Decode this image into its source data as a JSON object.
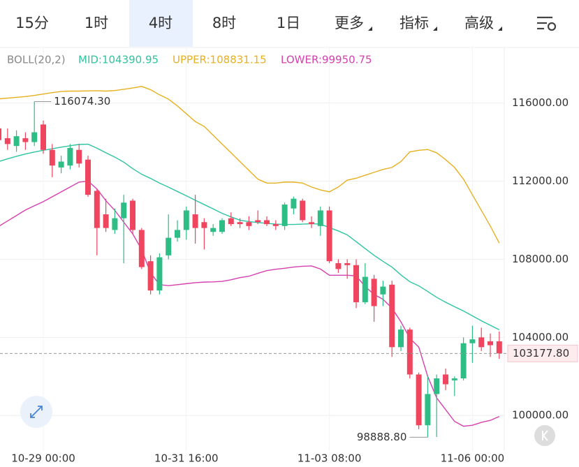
{
  "tabs": [
    "15分",
    "1时",
    "4时",
    "8时",
    "1日",
    "更多",
    "指标",
    "高级"
  ],
  "selected_tab": 2,
  "chart_data": {
    "type": "candlestick",
    "indicator": "BOLL(20,2)",
    "bands": [
      {
        "name": "MID",
        "label": "MID:104390.95",
        "color": "#2ec4a0",
        "values": [
          113000,
          113140,
          113270,
          113390,
          113490,
          113580,
          113660,
          113740,
          113810,
          113880,
          113890,
          113690,
          113450,
          113230,
          112970,
          112640,
          112350,
          112140,
          111900,
          111690,
          111470,
          111250,
          111020,
          110800,
          110580,
          110350,
          110170,
          110000,
          109930,
          109880,
          109840,
          109800,
          109780,
          109780,
          109800,
          109820,
          109800,
          109620,
          109450,
          109250,
          108900,
          108550,
          108200,
          107890,
          107600,
          107200,
          106850,
          106640,
          106350,
          106050,
          105800,
          105570,
          105350,
          105100,
          104850,
          104620,
          104390.95
        ]
      },
      {
        "name": "UPPER",
        "label": "UPPER:108831.15",
        "color": "#e8b020",
        "values": [
          116210,
          116250,
          116290,
          116330,
          116390,
          116460,
          116530,
          116590,
          116610,
          116610,
          116620,
          116630,
          116610,
          116640,
          116700,
          116770,
          116850,
          116680,
          116420,
          116200,
          115850,
          115450,
          115050,
          114800,
          114350,
          113900,
          113450,
          113000,
          112550,
          112100,
          111900,
          111900,
          111950,
          111950,
          111900,
          111700,
          111550,
          111450,
          111700,
          112050,
          112150,
          112300,
          112450,
          112600,
          112700,
          113000,
          113500,
          113580,
          113620,
          113450,
          113100,
          112700,
          112100,
          111300,
          110500,
          109700,
          108831.15
        ]
      },
      {
        "name": "LOWER",
        "label": "LOWER:99950.75",
        "color": "#d63fb0",
        "values": [
          109680,
          109960,
          110240,
          110520,
          110740,
          110950,
          111200,
          111450,
          111700,
          111950,
          112000,
          111600,
          111000,
          110500,
          109900,
          109300,
          108500,
          107300,
          106700,
          106650,
          106700,
          106750,
          106800,
          106830,
          106840,
          106870,
          106950,
          107060,
          107130,
          107280,
          107420,
          107490,
          107540,
          107600,
          107640,
          107660,
          107500,
          107180,
          107180,
          107180,
          107150,
          106600,
          106200,
          105950,
          105500,
          104800,
          103950,
          103500,
          102000,
          100900,
          100300,
          99700,
          99450,
          99500,
          99650,
          99750,
          99950.75
        ]
      }
    ],
    "categories": [
      null,
      null,
      null,
      null,
      null,
      "10-29 00:00",
      null,
      null,
      null,
      null,
      null,
      null,
      null,
      null,
      null,
      null,
      null,
      null,
      null,
      null,
      null,
      "10-31 16:00",
      null,
      null,
      null,
      null,
      null,
      null,
      null,
      null,
      null,
      null,
      null,
      null,
      null,
      null,
      null,
      "11-03 08:00",
      null,
      null,
      null,
      null,
      null,
      null,
      null,
      null,
      null,
      null,
      null,
      null,
      null,
      null,
      null,
      "11-06 00:00",
      null,
      null,
      null
    ],
    "open": [
      114700,
      114200,
      113800,
      114200,
      114000,
      114900,
      113600,
      112700,
      112800,
      113600,
      113100,
      111500,
      110300,
      109500,
      110100,
      111000,
      109500,
      107900,
      106400,
      108200,
      109100,
      109500,
      110300,
      109900,
      109400,
      109400,
      110100,
      109900,
      109900,
      110000,
      110000,
      109800,
      109700,
      110600,
      111000,
      109900,
      109700,
      110500,
      107800,
      107800,
      107700,
      105800,
      107000,
      106200,
      106700,
      103500,
      104400,
      102100,
      99500,
      101100,
      102100,
      101800,
      101900,
      103700,
      104000,
      103800,
      103800
    ],
    "high": [
      115300,
      114700,
      114600,
      114500,
      116074.3,
      115100,
      113900,
      113300,
      113900,
      113900,
      113300,
      111600,
      111100,
      110600,
      111300,
      111100,
      109600,
      108200,
      108300,
      110300,
      110000,
      110700,
      111300,
      110100,
      109800,
      110100,
      110400,
      110100,
      110200,
      110500,
      110200,
      110000,
      110900,
      111200,
      111100,
      110200,
      110700,
      110700,
      108000,
      108000,
      108000,
      107800,
      107200,
      106900,
      106900,
      104600,
      104500,
      102200,
      102000,
      102100,
      102400,
      102000,
      104000,
      104600,
      104500,
      104200,
      104300
    ],
    "low": [
      113800,
      113600,
      113500,
      113600,
      113800,
      113400,
      112200,
      112400,
      112600,
      112700,
      111200,
      108200,
      109400,
      109300,
      107800,
      109300,
      107500,
      106200,
      106200,
      108000,
      108900,
      109000,
      108800,
      108500,
      109200,
      109300,
      109700,
      109600,
      109500,
      109800,
      109700,
      109500,
      109500,
      110300,
      109900,
      109600,
      109200,
      107800,
      107300,
      107000,
      105500,
      105700,
      104800,
      105600,
      103000,
      103300,
      101900,
      99300,
      98888.8,
      98900,
      101300,
      101000,
      101800,
      102700,
      103300,
      103000,
      102900
    ],
    "close": [
      114100,
      113900,
      114300,
      114000,
      114500,
      113600,
      112800,
      113000,
      113700,
      112900,
      111300,
      109600,
      109600,
      110100,
      110900,
      109500,
      107600,
      106400,
      108100,
      109100,
      109500,
      110500,
      109600,
      109600,
      109600,
      110000,
      109800,
      109800,
      109700,
      109900,
      109800,
      109700,
      110800,
      111100,
      110000,
      109800,
      110500,
      107900,
      107500,
      107700,
      105800,
      107100,
      105600,
      106600,
      103500,
      104400,
      102100,
      99500,
      101100,
      101900,
      101600,
      101900,
      103700,
      103900,
      103500,
      103600,
      103177.8
    ],
    "up_color": "#2ebd85",
    "down_color": "#f0455e",
    "ylim": [
      98400,
      117700
    ],
    "yticks": [
      {
        "value": 100000,
        "label": "100000.00"
      },
      {
        "value": 104000,
        "label": "104000.00"
      },
      {
        "value": 108000,
        "label": "108000.00"
      },
      {
        "value": 112000,
        "label": "112000.00"
      },
      {
        "value": 116000,
        "label": "116000.00"
      }
    ],
    "grid": true,
    "last_price": {
      "value": 103177.8,
      "label": "103177.80"
    },
    "high_marker": {
      "index": 4,
      "value": 116074.3,
      "label": "116074.30"
    },
    "low_marker": {
      "index": 48,
      "value": 98888.8,
      "label": "98888.80"
    }
  }
}
